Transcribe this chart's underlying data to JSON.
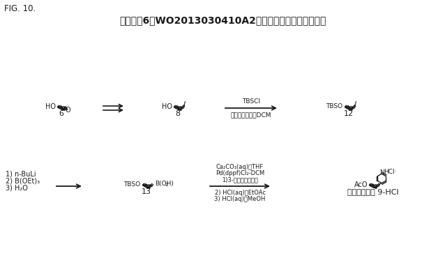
{
  "fig_label": "FIG. 10.",
  "title": "スキーム6：WO2013030410A2明細書に示される合成経路",
  "background_color": "#ffffff",
  "text_color": "#1a1a1a",
  "fig_width": 6.38,
  "fig_height": 3.7,
  "dpi": 100,
  "reagent1_above": "TBSCl",
  "reagent1_below": "イミダゾール，DCM",
  "reagent2_l1": "1)3-ブロモピリジン",
  "reagent2_l2": "Pd(dppf)Cl₂-DCM",
  "reagent2_l3": "Ca₂CO₃(aq)，THF",
  "reagent2_l4": "2) HCl(aq)，EtOAc",
  "reagent2_l5": "3) HCl(aq)，MeOH",
  "left_r1": "1) n-BuLi",
  "left_r2": "2) B(OEt)₃",
  "left_r3": "3) H₂O",
  "label6": "6",
  "label8": "8",
  "label12": "12",
  "label13": "13",
  "label_abi": "アビラテロン 9-HCl"
}
